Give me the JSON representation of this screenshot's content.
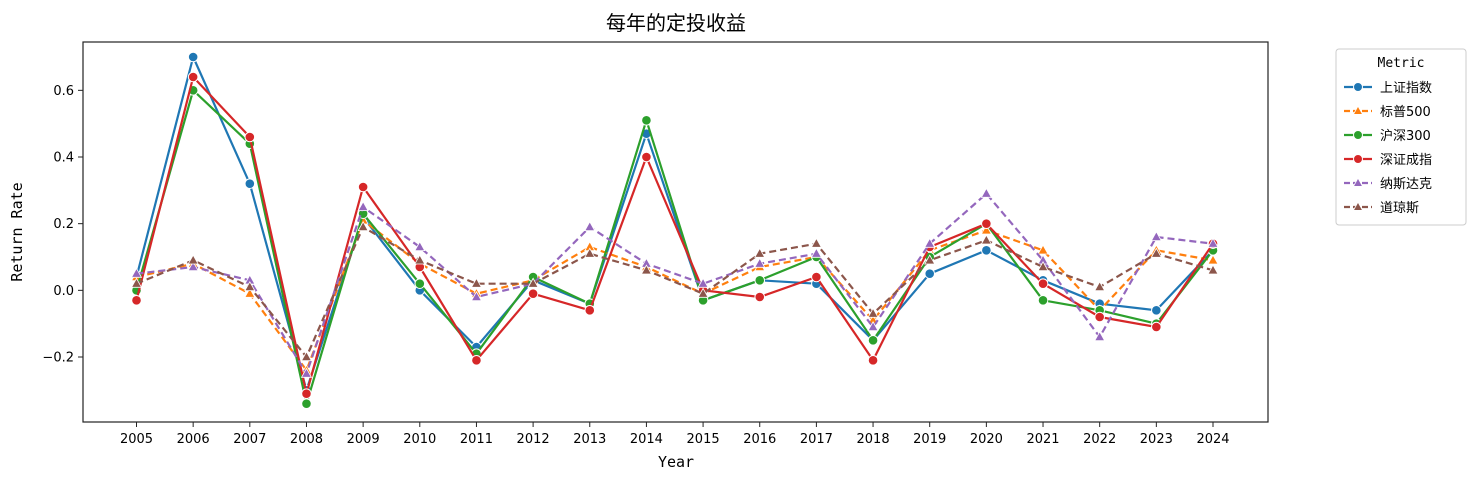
{
  "chart_data": {
    "type": "line",
    "title": "每年的定投收益",
    "xlabel": "Year",
    "ylabel": "Return Rate",
    "ylim": [
      -0.395,
      0.745
    ],
    "yticks": [
      -0.2,
      0.0,
      0.2,
      0.4,
      0.6
    ],
    "ytick_labels": [
      "−0.2",
      "0.0",
      "0.2",
      "0.4",
      "0.6"
    ],
    "x": [
      "2005",
      "2006",
      "2007",
      "2008",
      "2009",
      "2010",
      "2011",
      "2012",
      "2013",
      "2014",
      "2015",
      "2016",
      "2017",
      "2018",
      "2019",
      "2020",
      "2021",
      "2022",
      "2023",
      "2024"
    ],
    "grid": false,
    "legend": {
      "title": "Metric",
      "placement": "outside-top-right"
    },
    "series": [
      {
        "name": "上证指数",
        "color": "#1f77b4",
        "dash": "solid",
        "marker": "circle",
        "values": [
          0.04,
          0.7,
          0.32,
          -0.3,
          0.22,
          0.0,
          -0.17,
          0.03,
          -0.04,
          0.47,
          -0.03,
          0.03,
          0.02,
          -0.15,
          0.05,
          0.12,
          0.03,
          -0.04,
          -0.06,
          0.12
        ]
      },
      {
        "name": "标普500",
        "color": "#ff7f0e",
        "dash": "dashed",
        "marker": "triangle",
        "values": [
          0.04,
          0.08,
          -0.01,
          -0.24,
          0.21,
          0.08,
          -0.01,
          0.03,
          0.13,
          0.07,
          -0.01,
          0.07,
          0.1,
          -0.09,
          0.12,
          0.18,
          0.12,
          -0.06,
          0.12,
          0.09
        ]
      },
      {
        "name": "沪深300",
        "color": "#2ca02c",
        "dash": "solid",
        "marker": "circle",
        "values": [
          0.0,
          0.6,
          0.44,
          -0.34,
          0.23,
          0.02,
          -0.19,
          0.04,
          -0.04,
          0.51,
          -0.03,
          0.03,
          0.1,
          -0.15,
          0.1,
          0.2,
          -0.03,
          -0.06,
          -0.1,
          0.12
        ]
      },
      {
        "name": "深证成指",
        "color": "#d62728",
        "dash": "solid",
        "marker": "circle",
        "values": [
          -0.03,
          0.64,
          0.46,
          -0.31,
          0.31,
          0.07,
          -0.21,
          -0.01,
          -0.06,
          0.4,
          0.0,
          -0.02,
          0.04,
          -0.21,
          0.13,
          0.2,
          0.02,
          -0.08,
          -0.11,
          0.14
        ]
      },
      {
        "name": "纳斯达克",
        "color": "#9467bd",
        "dash": "dashed",
        "marker": "triangle",
        "values": [
          0.05,
          0.07,
          0.03,
          -0.25,
          0.25,
          0.13,
          -0.02,
          0.02,
          0.19,
          0.08,
          0.02,
          0.08,
          0.11,
          -0.11,
          0.14,
          0.29,
          0.09,
          -0.14,
          0.16,
          0.14
        ]
      },
      {
        "name": "道琼斯",
        "color": "#8c564b",
        "dash": "dashed",
        "marker": "triangle",
        "values": [
          0.02,
          0.09,
          0.01,
          -0.2,
          0.19,
          0.09,
          0.02,
          0.02,
          0.11,
          0.06,
          -0.01,
          0.11,
          0.14,
          -0.07,
          0.09,
          0.15,
          0.07,
          0.01,
          0.11,
          0.06
        ]
      }
    ]
  }
}
